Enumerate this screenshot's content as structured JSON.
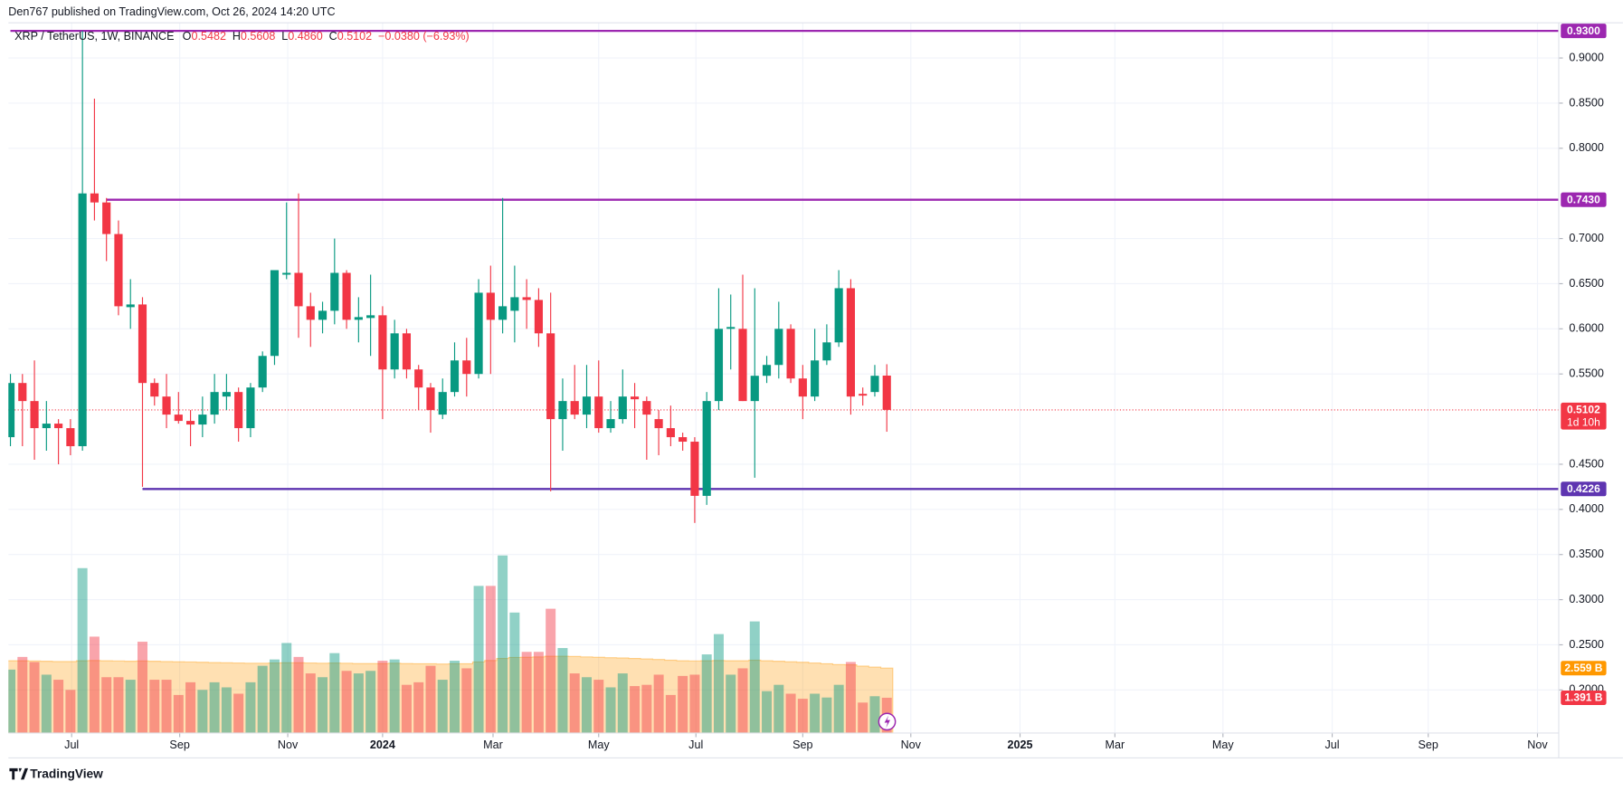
{
  "header": {
    "publisher": "Den767 published on TradingView.com, Oct 26, 2024 14:20 UTC"
  },
  "chart_data": {
    "type": "candlestick",
    "title": "XRP / TetherUS, 1W, BINANCE",
    "legend_values": [
      {
        "label": "O",
        "value": "0.5482"
      },
      {
        "label": "H",
        "value": "0.5608"
      },
      {
        "label": "L",
        "value": "0.4860"
      },
      {
        "label": "C",
        "value": "0.5102"
      }
    ],
    "change": "−0.0380 (−6.93%)",
    "open": [
      0.48,
      0.54,
      0.52,
      0.49,
      0.495,
      0.49,
      0.47,
      0.75,
      0.74,
      0.705,
      0.624,
      0.627,
      0.54,
      0.525,
      0.505,
      0.498,
      0.494,
      0.505,
      0.525,
      0.53,
      0.49,
      0.535,
      0.57,
      0.66,
      0.662,
      0.625,
      0.61,
      0.62,
      0.662,
      0.61,
      0.612,
      0.615,
      0.555,
      0.595,
      0.555,
      0.535,
      0.505,
      0.53,
      0.565,
      0.55,
      0.64,
      0.61,
      0.62,
      0.635,
      0.632,
      0.595,
      0.5,
      0.52,
      0.505,
      0.525,
      0.49,
      0.5,
      0.525,
      0.52,
      0.5,
      0.49,
      0.48,
      0.475,
      0.415,
      0.52,
      0.6,
      0.6,
      0.52,
      0.548,
      0.56,
      0.6,
      0.545,
      0.525,
      0.565,
      0.585,
      0.645,
      0.528,
      0.53,
      0.5482
    ],
    "high": [
      0.55,
      0.55,
      0.565,
      0.52,
      0.5,
      0.5,
      0.93,
      0.855,
      0.745,
      0.72,
      0.655,
      0.635,
      0.545,
      0.55,
      0.53,
      0.51,
      0.525,
      0.55,
      0.55,
      0.535,
      0.54,
      0.575,
      0.665,
      0.74,
      0.75,
      0.64,
      0.63,
      0.7,
      0.665,
      0.635,
      0.66,
      0.625,
      0.61,
      0.6,
      0.56,
      0.54,
      0.545,
      0.585,
      0.59,
      0.655,
      0.67,
      0.745,
      0.67,
      0.655,
      0.645,
      0.64,
      0.545,
      0.56,
      0.56,
      0.565,
      0.52,
      0.555,
      0.54,
      0.525,
      0.51,
      0.515,
      0.485,
      0.48,
      0.53,
      0.645,
      0.638,
      0.66,
      0.645,
      0.57,
      0.63,
      0.605,
      0.56,
      0.6,
      0.605,
      0.665,
      0.655,
      0.535,
      0.56,
      0.5608
    ],
    "low": [
      0.47,
      0.47,
      0.455,
      0.465,
      0.45,
      0.46,
      0.465,
      0.72,
      0.675,
      0.615,
      0.6,
      0.425,
      0.515,
      0.49,
      0.495,
      0.47,
      0.48,
      0.495,
      0.51,
      0.475,
      0.48,
      0.53,
      0.56,
      0.655,
      0.59,
      0.58,
      0.595,
      0.605,
      0.6,
      0.585,
      0.57,
      0.5,
      0.545,
      0.545,
      0.51,
      0.485,
      0.5,
      0.525,
      0.525,
      0.545,
      0.55,
      0.595,
      0.585,
      0.6,
      0.58,
      0.42,
      0.465,
      0.5,
      0.49,
      0.485,
      0.485,
      0.495,
      0.49,
      0.455,
      0.46,
      0.47,
      0.465,
      0.385,
      0.405,
      0.51,
      0.555,
      0.52,
      0.435,
      0.54,
      0.545,
      0.54,
      0.5,
      0.52,
      0.56,
      0.58,
      0.505,
      0.515,
      0.525,
      0.486
    ],
    "close": [
      0.54,
      0.52,
      0.49,
      0.495,
      0.49,
      0.47,
      0.75,
      0.74,
      0.705,
      0.625,
      0.627,
      0.54,
      0.525,
      0.505,
      0.498,
      0.494,
      0.505,
      0.53,
      0.53,
      0.49,
      0.535,
      0.57,
      0.665,
      0.662,
      0.625,
      0.61,
      0.62,
      0.662,
      0.61,
      0.613,
      0.615,
      0.555,
      0.595,
      0.555,
      0.535,
      0.51,
      0.53,
      0.565,
      0.55,
      0.64,
      0.61,
      0.625,
      0.635,
      0.632,
      0.595,
      0.5,
      0.52,
      0.505,
      0.525,
      0.49,
      0.5,
      0.525,
      0.522,
      0.505,
      0.49,
      0.48,
      0.475,
      0.415,
      0.52,
      0.6,
      0.602,
      0.52,
      0.548,
      0.56,
      0.6,
      0.545,
      0.525,
      0.565,
      0.585,
      0.645,
      0.525,
      0.526,
      0.548,
      0.5102
    ],
    "up_color": "#089981",
    "down_color": "#f23645",
    "volume": [
      2.5,
      3.0,
      2.8,
      2.3,
      2.1,
      1.7,
      6.5,
      3.8,
      2.2,
      2.2,
      2.1,
      3.6,
      2.1,
      2.1,
      1.5,
      2.0,
      1.7,
      2.0,
      1.8,
      1.55,
      2.0,
      2.65,
      2.9,
      3.55,
      3.0,
      2.35,
      2.2,
      3.15,
      2.45,
      2.35,
      2.45,
      2.85,
      2.9,
      1.9,
      2.0,
      2.65,
      2.1,
      2.85,
      2.55,
      5.8,
      5.8,
      7.0,
      4.75,
      3.2,
      3.2,
      4.9,
      3.35,
      2.35,
      2.2,
      2.1,
      1.8,
      2.35,
      1.85,
      1.9,
      2.3,
      1.5,
      2.25,
      2.3,
      3.1,
      3.9,
      2.3,
      2.55,
      4.4,
      1.65,
      1.9,
      1.55,
      1.35,
      1.55,
      1.4,
      1.9,
      2.8,
      1.2,
      1.45,
      1.391
    ],
    "volume_ma": [
      2.85,
      2.85,
      2.84,
      2.83,
      2.82,
      2.82,
      2.85,
      2.86,
      2.85,
      2.84,
      2.83,
      2.84,
      2.83,
      2.82,
      2.81,
      2.8,
      2.79,
      2.78,
      2.77,
      2.76,
      2.75,
      2.75,
      2.76,
      2.77,
      2.77,
      2.76,
      2.75,
      2.76,
      2.75,
      2.74,
      2.74,
      2.74,
      2.75,
      2.74,
      2.73,
      2.73,
      2.72,
      2.73,
      2.73,
      2.8,
      2.86,
      2.94,
      2.98,
      2.99,
      3.0,
      3.03,
      3.03,
      3.02,
      3.0,
      2.99,
      2.97,
      2.96,
      2.94,
      2.92,
      2.9,
      2.87,
      2.85,
      2.84,
      2.85,
      2.86,
      2.85,
      2.85,
      2.87,
      2.85,
      2.83,
      2.81,
      2.79,
      2.76,
      2.73,
      2.7,
      2.69,
      2.64,
      2.6,
      2.559
    ],
    "volume_ma_color": "#ff9800",
    "volume_lim": [
      0,
      28
    ],
    "volume_ma_label": {
      "value": 2.559,
      "label": "2.559 B"
    },
    "volume_last_label": {
      "value": 1.391,
      "label": "1.391 B"
    },
    "ylim": [
      0.1523,
      0.939
    ],
    "yticks": [
      {
        "value": 0.9,
        "label": "0.9000"
      },
      {
        "value": 0.85,
        "label": "0.8500"
      },
      {
        "value": 0.8,
        "label": "0.8000"
      },
      {
        "value": 0.7,
        "label": "0.7000"
      },
      {
        "value": 0.65,
        "label": "0.6500"
      },
      {
        "value": 0.6,
        "label": "0.6000"
      },
      {
        "value": 0.55,
        "label": "0.5500"
      },
      {
        "value": 0.45,
        "label": "0.4500"
      },
      {
        "value": 0.4,
        "label": "0.4000"
      },
      {
        "value": 0.35,
        "label": "0.3500"
      },
      {
        "value": 0.3,
        "label": "0.3000"
      },
      {
        "value": 0.25,
        "label": "0.2500"
      },
      {
        "value": 0.2,
        "label": "0.2000"
      }
    ],
    "xlim": [
      -0.17,
      128.97
    ],
    "xticks": [
      {
        "value": 5.1,
        "label": "Jul"
      },
      {
        "value": 14.1,
        "label": "Sep"
      },
      {
        "value": 23.1,
        "label": "Nov"
      },
      {
        "value": 31.0,
        "label": "2024"
      },
      {
        "value": 40.2,
        "label": "Mar"
      },
      {
        "value": 49.0,
        "label": "May"
      },
      {
        "value": 57.1,
        "label": "Jul"
      },
      {
        "value": 66.0,
        "label": "Sep"
      },
      {
        "value": 75.0,
        "label": "Nov"
      },
      {
        "value": 84.1,
        "label": "2025"
      },
      {
        "value": 92.0,
        "label": "Mar"
      },
      {
        "value": 101.0,
        "label": "May"
      },
      {
        "value": 110.1,
        "label": "Jul"
      },
      {
        "value": 118.1,
        "label": "Sep"
      },
      {
        "value": 127.2,
        "label": "Nov"
      }
    ],
    "levels": [
      {
        "value": 0.93,
        "label": "0.9300",
        "from": 0,
        "color": "#9c27b0"
      },
      {
        "value": 0.743,
        "label": "0.7430",
        "from": 8,
        "color": "#9c27b0"
      },
      {
        "value": 0.4226,
        "label": "0.4226",
        "from": 11,
        "color": "#5e35b1"
      }
    ],
    "last_price": {
      "value": 0.5102,
      "label": "0.5102",
      "countdown": "1d 10h",
      "color": "#f23645"
    },
    "grid": true
  },
  "footer": {
    "brand": "TradingView"
  }
}
